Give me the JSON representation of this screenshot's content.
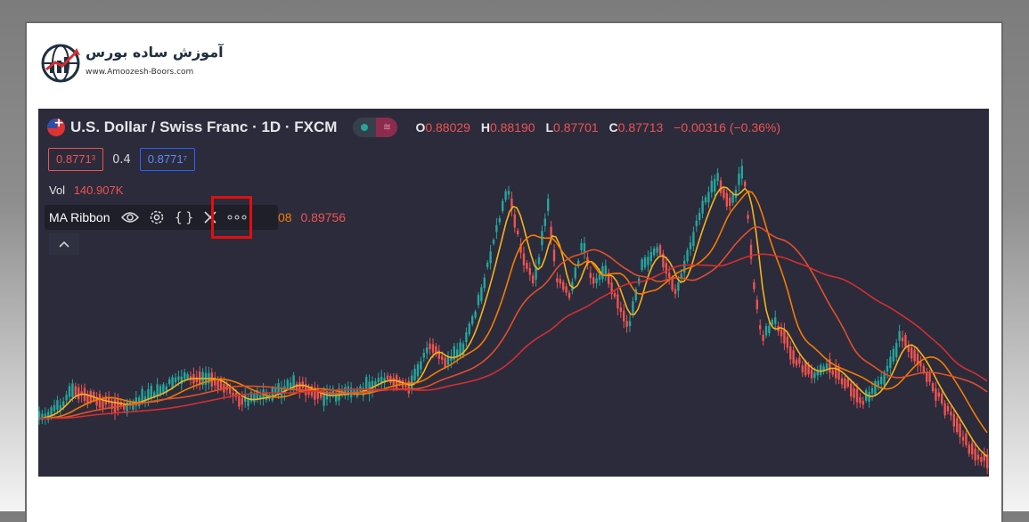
{
  "logo": {
    "icon": "globe-chart-icon",
    "title": "آموزش ساده بورس",
    "url": "www.Amoozesh-Boors.com"
  },
  "chart_header": {
    "symbol_title": "U.S. Dollar / Swiss Franc · 1D · FXCM",
    "flag_icon": "usd-chf-flag-icon",
    "ohlc": {
      "o_label": "O",
      "o_value": "0.88029",
      "h_label": "H",
      "h_value": "0.88190",
      "l_label": "L",
      "l_value": "0.87701",
      "c_label": "C",
      "c_value": "0.87713",
      "change": "−0.00316 (−0.36%)"
    }
  },
  "trade": {
    "sell_price": "0.8771³",
    "spread": "0.4",
    "buy_price": "0.8771⁷"
  },
  "volume": {
    "label": "Vol",
    "value": "140.907K"
  },
  "indicator": {
    "name": "MA Ribbon",
    "eye_icon": "eye-icon",
    "settings_icon": "gear-icon",
    "source_icon": "braces-icon",
    "close_icon": "close-icon",
    "more_icon": "more-icon",
    "value_partial": "08",
    "value_2": "0.89756",
    "collapse_icon": "chevron-up-icon"
  },
  "colors": {
    "chart_bg": "#2b2b3c",
    "up": "#26a69a",
    "down": "#ef5350",
    "ma_fast": "#f5b21b",
    "ma_mid": "#f57c00",
    "ma_slow": "#e0502a",
    "ma_slowest": "#d32f2f",
    "highlight": "#e10f0f"
  },
  "chart_data": {
    "type": "line",
    "series": [
      {
        "name": "",
        "values": [
          442,
          450,
          455,
          448,
          436,
          435,
          430,
          427,
          418,
          403,
          390,
          360,
          335,
          318,
          300,
          292,
          297,
          301,
          280,
          270,
          262,
          280,
          297,
          315,
          320,
          305,
          295,
          285,
          272,
          265,
          260,
          262,
          268,
          280,
          300,
          340,
          378,
          410,
          424,
          418,
          415,
          430,
          445,
          458,
          472,
          486,
          498,
          510
        ]
      },
      {
        "name": "",
        "values": [
          452,
          456,
          456,
          451,
          441,
          441,
          438,
          433,
          426,
          413,
          398,
          372,
          350,
          330,
          312,
          303,
          302,
          305,
          296,
          288,
          282,
          288,
          296,
          305,
          308,
          300,
          294,
          286,
          277,
          270,
          266,
          265,
          270,
          278,
          292,
          318,
          345,
          372,
          392,
          402,
          406,
          418,
          434,
          450,
          463,
          476,
          489,
          498
        ]
      }
    ]
  }
}
